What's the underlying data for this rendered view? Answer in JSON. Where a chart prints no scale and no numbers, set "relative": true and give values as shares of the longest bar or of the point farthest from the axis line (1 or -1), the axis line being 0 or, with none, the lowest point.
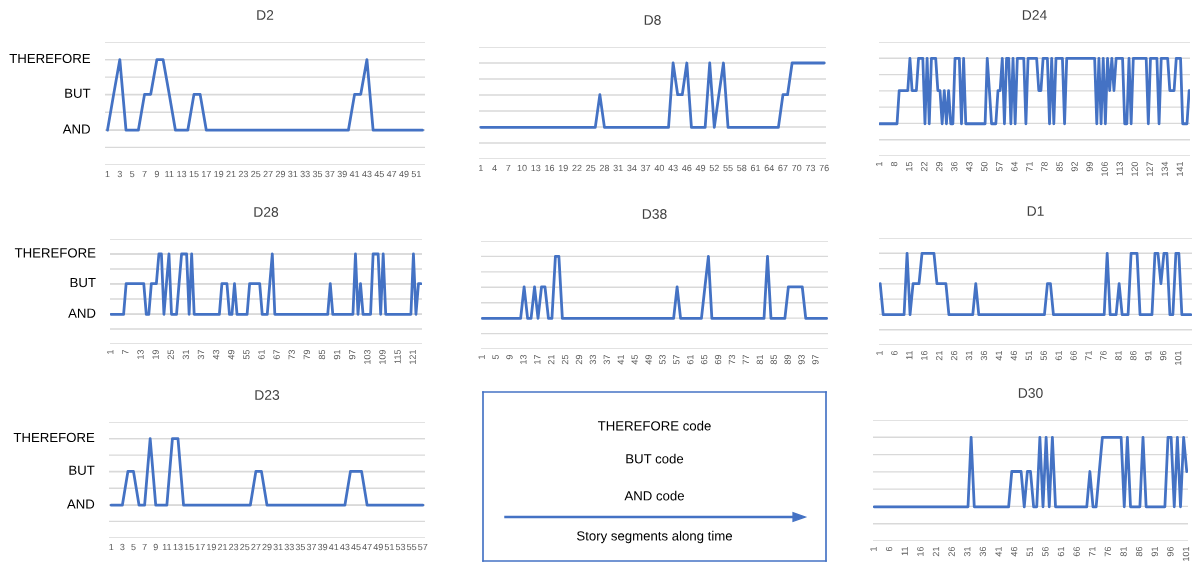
{
  "chart_data": [
    {
      "type": "line",
      "title": "D2",
      "color": "#4472c4",
      "grid": "y",
      "relative": true,
      "ref_lines": [
        {
          "axis": "y",
          "value": 0.33,
          "label": "AND",
          "color": "#d9d9d9"
        },
        {
          "axis": "y",
          "value": 0.67,
          "label": "BUT",
          "color": "#d9d9d9"
        },
        {
          "axis": "y",
          "value": 1,
          "label": "THEREFORE",
          "color": "#d9d9d9"
        }
      ],
      "categories": [
        "1",
        null,
        "3",
        null,
        "5",
        null,
        "7",
        null,
        "9",
        null,
        "11",
        null,
        "13",
        null,
        "15",
        null,
        "17",
        null,
        "19",
        null,
        "21",
        null,
        "23",
        null,
        "25",
        null,
        "27",
        null,
        "29",
        null,
        "31",
        null,
        "33",
        null,
        "35",
        null,
        "37",
        null,
        "39",
        null,
        "41",
        null,
        "43",
        null,
        "45",
        null,
        "47",
        null,
        "49",
        null,
        "51",
        null
      ],
      "values": [
        0.33,
        0.67,
        1,
        0.33,
        0.33,
        0.33,
        0.67,
        0.67,
        1,
        1,
        0.67,
        0.33,
        0.33,
        0.33,
        0.67,
        0.67,
        0.33,
        0.33,
        0.33,
        0.33,
        0.33,
        0.33,
        0.33,
        0.33,
        0.33,
        0.33,
        0.33,
        0.33,
        0.33,
        0.33,
        0.33,
        0.33,
        0.33,
        0.33,
        0.33,
        0.33,
        0.33,
        0.33,
        0.33,
        0.33,
        0.67,
        0.67,
        1,
        0.33,
        0.33,
        0.33,
        0.33,
        0.33,
        0.33,
        0.33,
        0.33,
        0.33
      ]
    },
    {
      "type": "line",
      "title": "D8",
      "color": "#4472c4",
      "grid": "y",
      "relative": true,
      "categories": [
        "1",
        null,
        null,
        "4",
        null,
        null,
        "7",
        null,
        null,
        "10",
        null,
        null,
        "13",
        null,
        null,
        "16",
        null,
        null,
        "19",
        null,
        null,
        "22",
        null,
        null,
        "25",
        null,
        null,
        "28",
        null,
        null,
        "31",
        null,
        null,
        "34",
        null,
        null,
        "37",
        null,
        null,
        "40",
        null,
        null,
        "43",
        null,
        null,
        "46",
        null,
        null,
        "49",
        null,
        null,
        "52",
        null,
        null,
        "55",
        null,
        null,
        "58",
        null,
        null,
        "61",
        null,
        null,
        "64",
        null,
        null,
        "67",
        null,
        null,
        "70",
        null,
        null,
        "73",
        null,
        null,
        "76"
      ],
      "values": [
        0.33,
        0.33,
        0.33,
        0.33,
        0.33,
        0.33,
        0.33,
        0.33,
        0.33,
        0.33,
        0.33,
        0.33,
        0.33,
        0.33,
        0.33,
        0.33,
        0.33,
        0.33,
        0.33,
        0.33,
        0.33,
        0.33,
        0.33,
        0.33,
        0.33,
        0.33,
        0.67,
        0.33,
        0.33,
        0.33,
        0.33,
        0.33,
        0.33,
        0.33,
        0.33,
        0.33,
        0.33,
        0.33,
        0.33,
        0.33,
        0.33,
        0.33,
        1,
        0.67,
        0.67,
        1,
        0.33,
        0.33,
        0.33,
        0.33,
        1,
        0.33,
        0.67,
        1,
        0.33,
        0.33,
        0.33,
        0.33,
        0.33,
        0.33,
        0.33,
        0.33,
        0.33,
        0.33,
        0.33,
        0.33,
        0.67,
        0.67,
        1,
        1,
        1,
        1,
        1,
        1,
        1,
        1
      ]
    },
    {
      "type": "line",
      "title": "D24",
      "color": "#4472c4",
      "grid": "y",
      "relative": true,
      "categories": [
        "1",
        null,
        null,
        null,
        null,
        null,
        null,
        "8",
        null,
        null,
        null,
        null,
        null,
        null,
        "15",
        null,
        null,
        null,
        null,
        null,
        null,
        "22",
        null,
        null,
        null,
        null,
        null,
        null,
        "29",
        null,
        null,
        null,
        null,
        null,
        null,
        "36",
        null,
        null,
        null,
        null,
        null,
        null,
        "43",
        null,
        null,
        null,
        null,
        null,
        null,
        "50",
        null,
        null,
        null,
        null,
        null,
        null,
        "57",
        null,
        null,
        null,
        null,
        null,
        null,
        "64",
        null,
        null,
        null,
        null,
        null,
        null,
        "71",
        null,
        null,
        null,
        null,
        null,
        null,
        "78",
        null,
        null,
        null,
        null,
        null,
        null,
        "85",
        null,
        null,
        null,
        null,
        null,
        null,
        "92",
        null,
        null,
        null,
        null,
        null,
        null,
        "99",
        null,
        null,
        null,
        null,
        null,
        null,
        "106",
        null,
        null,
        null,
        null,
        null,
        null,
        "113",
        null,
        null,
        null,
        null,
        null,
        null,
        "120",
        null,
        null,
        null,
        null,
        null,
        null,
        "127",
        null,
        null,
        null,
        null,
        null,
        null,
        "134",
        null,
        null,
        null,
        null,
        null,
        null,
        "141",
        null,
        null,
        null,
        null
      ],
      "values": [
        0.33,
        0.33,
        0.33,
        0.33,
        0.33,
        0.33,
        0.33,
        0.33,
        0.33,
        0.67,
        0.67,
        0.67,
        0.67,
        0.67,
        1,
        0.67,
        0.67,
        0.67,
        1,
        1,
        1,
        0.33,
        1,
        0.33,
        1,
        1,
        1,
        0.67,
        0.67,
        0.33,
        0.67,
        0.33,
        0.67,
        0.33,
        0.33,
        1,
        1,
        1,
        0.33,
        1,
        0.33,
        0.33,
        0.33,
        0.33,
        0.33,
        0.33,
        0.33,
        0.33,
        0.33,
        0.33,
        1,
        0.67,
        0.33,
        0.33,
        0.33,
        0.67,
        0.67,
        1,
        0.33,
        1,
        1,
        0.33,
        1,
        0.33,
        1,
        1,
        1,
        1,
        0.33,
        1,
        1,
        1,
        1,
        1,
        0.67,
        0.67,
        1,
        1,
        1,
        0.33,
        1,
        0.33,
        1,
        1,
        1,
        1,
        0.33,
        1,
        1,
        1,
        1,
        1,
        1,
        1,
        1,
        1,
        1,
        1,
        1,
        1,
        1,
        0.33,
        1,
        0.33,
        1,
        0.33,
        1,
        0.67,
        1,
        0.67,
        1,
        1,
        1,
        1,
        0.33,
        0.33,
        1,
        0.33,
        1,
        1,
        1,
        1,
        1,
        1,
        1,
        0.33,
        1,
        1,
        1,
        1,
        0.33,
        1,
        1,
        1,
        1,
        0.67,
        0.67,
        0.67,
        1,
        1,
        1,
        0.33,
        0.33,
        0.33,
        0.67
      ]
    },
    {
      "type": "line",
      "title": "D28",
      "color": "#4472c4",
      "grid": "y",
      "relative": true,
      "ref_lines": [
        {
          "axis": "y",
          "value": 0.33,
          "label": "AND",
          "color": "#d9d9d9"
        },
        {
          "axis": "y",
          "value": 0.67,
          "label": "BUT",
          "color": "#d9d9d9"
        },
        {
          "axis": "y",
          "value": 1,
          "label": "THEREFORE",
          "color": "#d9d9d9"
        }
      ],
      "categories": [
        "1",
        null,
        null,
        null,
        null,
        null,
        "7",
        null,
        null,
        null,
        null,
        null,
        "13",
        null,
        null,
        null,
        null,
        null,
        "19",
        null,
        null,
        null,
        null,
        null,
        "25",
        null,
        null,
        null,
        null,
        null,
        "31",
        null,
        null,
        null,
        null,
        null,
        "37",
        null,
        null,
        null,
        null,
        null,
        "43",
        null,
        null,
        null,
        null,
        null,
        "49",
        null,
        null,
        null,
        null,
        null,
        "55",
        null,
        null,
        null,
        null,
        null,
        "61",
        null,
        null,
        null,
        null,
        null,
        "67",
        null,
        null,
        null,
        null,
        null,
        "73",
        null,
        null,
        null,
        null,
        null,
        "79",
        null,
        null,
        null,
        null,
        null,
        "85",
        null,
        null,
        null,
        null,
        null,
        "91",
        null,
        null,
        null,
        null,
        null,
        "97",
        null,
        null,
        null,
        null,
        null,
        "103",
        null,
        null,
        null,
        null,
        null,
        "109",
        null,
        null,
        null,
        null,
        null,
        "115",
        null,
        null,
        null,
        null,
        null,
        "121",
        null,
        null,
        null
      ],
      "values": [
        0.33,
        0.33,
        0.33,
        0.33,
        0.33,
        0.33,
        0.67,
        0.67,
        0.67,
        0.67,
        0.67,
        0.67,
        0.67,
        0.67,
        0.33,
        0.33,
        0.67,
        0.67,
        0.67,
        1,
        1,
        0.33,
        0.67,
        1,
        0.33,
        0.33,
        0.33,
        0.67,
        1,
        1,
        1,
        0.33,
        1,
        0.33,
        0.33,
        0.33,
        0.33,
        0.33,
        0.33,
        0.33,
        0.33,
        0.33,
        0.33,
        0.33,
        0.67,
        0.67,
        0.67,
        0.33,
        0.33,
        0.67,
        0.33,
        0.33,
        0.33,
        0.33,
        0.33,
        0.67,
        0.67,
        0.67,
        0.67,
        0.67,
        0.33,
        0.33,
        0.33,
        0.67,
        1,
        0.33,
        0.33,
        0.33,
        0.33,
        0.33,
        0.33,
        0.33,
        0.33,
        0.33,
        0.33,
        0.33,
        0.33,
        0.33,
        0.33,
        0.33,
        0.33,
        0.33,
        0.33,
        0.33,
        0.33,
        0.33,
        0.33,
        0.67,
        0.33,
        0.33,
        0.33,
        0.33,
        0.33,
        0.33,
        0.33,
        0.33,
        0.33,
        1,
        0.33,
        0.67,
        0.33,
        0.33,
        0.33,
        0.33,
        1,
        1,
        1,
        0.33,
        1,
        0.33,
        0.33,
        0.33,
        0.33,
        0.33,
        0.33,
        0.33,
        0.33,
        0.33,
        0.33,
        0.33,
        1,
        0.33,
        0.67,
        0.67
      ]
    },
    {
      "type": "line",
      "title": "D38",
      "color": "#4472c4",
      "grid": "y",
      "relative": true,
      "categories": [
        "1",
        null,
        null,
        null,
        "5",
        null,
        null,
        null,
        "9",
        null,
        null,
        null,
        "13",
        null,
        null,
        null,
        "17",
        null,
        null,
        null,
        "21",
        null,
        null,
        null,
        "25",
        null,
        null,
        null,
        "29",
        null,
        null,
        null,
        "33",
        null,
        null,
        null,
        "37",
        null,
        null,
        null,
        "41",
        null,
        null,
        null,
        "45",
        null,
        null,
        null,
        "49",
        null,
        null,
        null,
        "53",
        null,
        null,
        null,
        "57",
        null,
        null,
        null,
        "61",
        null,
        null,
        null,
        "65",
        null,
        null,
        null,
        "69",
        null,
        null,
        null,
        "73",
        null,
        null,
        null,
        "77",
        null,
        null,
        null,
        "81",
        null,
        null,
        null,
        "85",
        null,
        null,
        null,
        "89",
        null,
        null,
        null,
        "93",
        null,
        null,
        null,
        "97",
        null,
        null,
        null
      ],
      "values": [
        0.33,
        0.33,
        0.33,
        0.33,
        0.33,
        0.33,
        0.33,
        0.33,
        0.33,
        0.33,
        0.33,
        0.33,
        0.67,
        0.33,
        0.33,
        0.67,
        0.33,
        0.67,
        0.67,
        0.33,
        0.33,
        1,
        1,
        0.33,
        0.33,
        0.33,
        0.33,
        0.33,
        0.33,
        0.33,
        0.33,
        0.33,
        0.33,
        0.33,
        0.33,
        0.33,
        0.33,
        0.33,
        0.33,
        0.33,
        0.33,
        0.33,
        0.33,
        0.33,
        0.33,
        0.33,
        0.33,
        0.33,
        0.33,
        0.33,
        0.33,
        0.33,
        0.33,
        0.33,
        0.33,
        0.33,
        0.67,
        0.33,
        0.33,
        0.33,
        0.33,
        0.33,
        0.33,
        0.33,
        0.67,
        1,
        0.33,
        0.33,
        0.33,
        0.33,
        0.33,
        0.33,
        0.33,
        0.33,
        0.33,
        0.33,
        0.33,
        0.33,
        0.33,
        0.33,
        0.33,
        0.33,
        1,
        0.33,
        0.33,
        0.33,
        0.33,
        0.33,
        0.67,
        0.67,
        0.67,
        0.67,
        0.67,
        0.33,
        0.33,
        0.33,
        0.33,
        0.33,
        0.33,
        0.33
      ]
    },
    {
      "type": "line",
      "title": "D1",
      "color": "#4472c4",
      "grid": "y",
      "relative": true,
      "categories": [
        "1",
        null,
        null,
        null,
        null,
        "6",
        null,
        null,
        null,
        null,
        "11",
        null,
        null,
        null,
        null,
        "16",
        null,
        null,
        null,
        null,
        "21",
        null,
        null,
        null,
        null,
        "26",
        null,
        null,
        null,
        null,
        "31",
        null,
        null,
        null,
        null,
        "36",
        null,
        null,
        null,
        null,
        "41",
        null,
        null,
        null,
        null,
        "46",
        null,
        null,
        null,
        null,
        "51",
        null,
        null,
        null,
        null,
        "56",
        null,
        null,
        null,
        null,
        "61",
        null,
        null,
        null,
        null,
        "66",
        null,
        null,
        null,
        null,
        "71",
        null,
        null,
        null,
        null,
        "76",
        null,
        null,
        null,
        null,
        "81",
        null,
        null,
        null,
        null,
        "86",
        null,
        null,
        null,
        null,
        "91",
        null,
        null,
        null,
        null,
        "96",
        null,
        null,
        null,
        null,
        "101",
        null,
        null,
        null,
        null
      ],
      "values": [
        0.67,
        0.33,
        0.33,
        0.33,
        0.33,
        0.33,
        0.33,
        0.33,
        0.33,
        1,
        0.33,
        0.67,
        0.67,
        0.67,
        1,
        1,
        1,
        1,
        1,
        0.67,
        0.67,
        0.67,
        0.67,
        0.33,
        0.33,
        0.33,
        0.33,
        0.33,
        0.33,
        0.33,
        0.33,
        0.33,
        0.67,
        0.33,
        0.33,
        0.33,
        0.33,
        0.33,
        0.33,
        0.33,
        0.33,
        0.33,
        0.33,
        0.33,
        0.33,
        0.33,
        0.33,
        0.33,
        0.33,
        0.33,
        0.33,
        0.33,
        0.33,
        0.33,
        0.33,
        0.33,
        0.67,
        0.67,
        0.33,
        0.33,
        0.33,
        0.33,
        0.33,
        0.33,
        0.33,
        0.33,
        0.33,
        0.33,
        0.33,
        0.33,
        0.33,
        0.33,
        0.33,
        0.33,
        0.33,
        0.33,
        1,
        0.33,
        0.33,
        0.33,
        0.67,
        0.33,
        0.33,
        0.33,
        1,
        1,
        1,
        0.33,
        0.33,
        0.33,
        0.33,
        0.33,
        1,
        1,
        0.67,
        1,
        1,
        0.33,
        0.33,
        1,
        1,
        0.33,
        0.33,
        0.33,
        0.33
      ]
    },
    {
      "type": "line",
      "title": "D23",
      "color": "#4472c4",
      "grid": "y",
      "relative": true,
      "ref_lines": [
        {
          "axis": "y",
          "value": 0.33,
          "label": "AND",
          "color": "#d9d9d9"
        },
        {
          "axis": "y",
          "value": 0.67,
          "label": "BUT",
          "color": "#d9d9d9"
        },
        {
          "axis": "y",
          "value": 1,
          "label": "THEREFORE",
          "color": "#d9d9d9"
        }
      ],
      "categories": [
        "1",
        null,
        "3",
        null,
        "5",
        null,
        "7",
        null,
        "9",
        null,
        "11",
        null,
        "13",
        null,
        "15",
        null,
        "17",
        null,
        "19",
        null,
        "21",
        null,
        "23",
        null,
        "25",
        null,
        "27",
        null,
        "29",
        null,
        "31",
        null,
        "33",
        null,
        "35",
        null,
        "37",
        null,
        "39",
        null,
        "41",
        null,
        "43",
        null,
        "45",
        null,
        "47",
        null,
        "49",
        null,
        "51",
        null,
        "53",
        null,
        "55",
        null,
        "57"
      ],
      "values": [
        0.33,
        0.33,
        0.33,
        0.67,
        0.67,
        0.33,
        0.33,
        1,
        0.33,
        0.33,
        0.33,
        1,
        1,
        0.33,
        0.33,
        0.33,
        0.33,
        0.33,
        0.33,
        0.33,
        0.33,
        0.33,
        0.33,
        0.33,
        0.33,
        0.33,
        0.67,
        0.67,
        0.33,
        0.33,
        0.33,
        0.33,
        0.33,
        0.33,
        0.33,
        0.33,
        0.33,
        0.33,
        0.33,
        0.33,
        0.33,
        0.33,
        0.33,
        0.67,
        0.67,
        0.67,
        0.33,
        0.33,
        0.33,
        0.33,
        0.33,
        0.33,
        0.33,
        0.33,
        0.33,
        0.33,
        0.33
      ]
    },
    {
      "type": "other",
      "annotations": [
        "THEREFORE code",
        "BUT code",
        "AND code",
        "Story segments along time"
      ],
      "color": "#4472c4"
    },
    {
      "type": "line",
      "title": "D30",
      "color": "#4472c4",
      "grid": "y",
      "relative": true,
      "categories": [
        "1",
        null,
        null,
        null,
        null,
        "6",
        null,
        null,
        null,
        null,
        "11",
        null,
        null,
        null,
        null,
        "16",
        null,
        null,
        null,
        null,
        "21",
        null,
        null,
        null,
        null,
        "26",
        null,
        null,
        null,
        null,
        "31",
        null,
        null,
        null,
        null,
        "36",
        null,
        null,
        null,
        null,
        "41",
        null,
        null,
        null,
        null,
        "46",
        null,
        null,
        null,
        null,
        "51",
        null,
        null,
        null,
        null,
        "56",
        null,
        null,
        null,
        null,
        "61",
        null,
        null,
        null,
        null,
        "66",
        null,
        null,
        null,
        null,
        "71",
        null,
        null,
        null,
        null,
        "76",
        null,
        null,
        null,
        null,
        "81",
        null,
        null,
        null,
        null,
        "86",
        null,
        null,
        null,
        null,
        "91",
        null,
        null,
        null,
        null,
        "96",
        null,
        null,
        null,
        null,
        "101"
      ],
      "values": [
        0.33,
        0.33,
        0.33,
        0.33,
        0.33,
        0.33,
        0.33,
        0.33,
        0.33,
        0.33,
        0.33,
        0.33,
        0.33,
        0.33,
        0.33,
        0.33,
        0.33,
        0.33,
        0.33,
        0.33,
        0.33,
        0.33,
        0.33,
        0.33,
        0.33,
        0.33,
        0.33,
        0.33,
        0.33,
        0.33,
        0.33,
        1,
        0.33,
        0.33,
        0.33,
        0.33,
        0.33,
        0.33,
        0.33,
        0.33,
        0.33,
        0.33,
        0.33,
        0.33,
        0.67,
        0.67,
        0.67,
        0.67,
        0.33,
        0.67,
        0.67,
        0.33,
        0.33,
        1,
        0.33,
        1,
        0.33,
        1,
        0.33,
        0.33,
        0.33,
        0.33,
        0.33,
        0.33,
        0.33,
        0.33,
        0.33,
        0.33,
        0.33,
        0.67,
        0.33,
        0.33,
        0.67,
        1,
        1,
        1,
        1,
        1,
        1,
        1,
        0.33,
        1,
        0.33,
        0.33,
        0.33,
        0.33,
        1,
        0.33,
        0.33,
        0.33,
        0.33,
        0.33,
        0.33,
        0.33,
        1,
        1,
        0.33,
        1,
        0.33,
        1,
        0.67
      ]
    }
  ]
}
